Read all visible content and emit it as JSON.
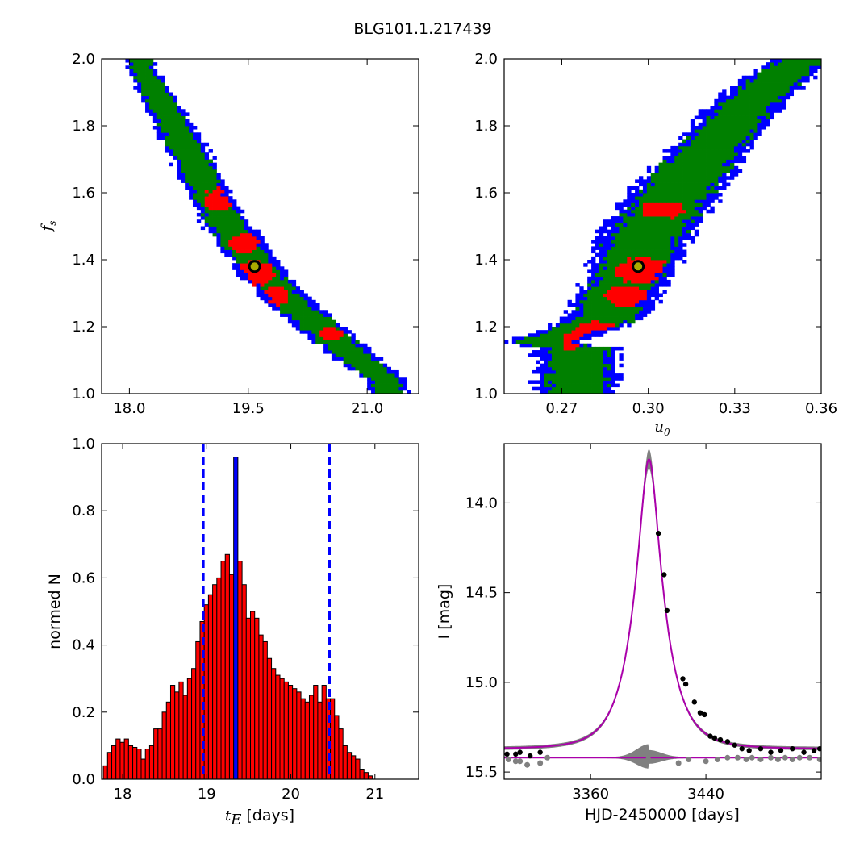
{
  "figure": {
    "title": "BLG101.1.217439"
  },
  "colors": {
    "sigma1": "#ff0000",
    "sigma2": "#008000",
    "sigma3": "#0000ff",
    "best_marker_face": "#aaaa00",
    "hist_bar": "#ff0000",
    "hist_peak": "#0000ff",
    "dashed": "#0000ff",
    "model_line": "#aa00aa",
    "band": "#808080",
    "data_point": "#000000",
    "residual_point": "#808080"
  },
  "chart_data": [
    {
      "id": "te_fs",
      "type": "heatmap",
      "title": "",
      "xlabel": "",
      "ylabel": "f_s",
      "ylabel_main": "f",
      "ylabel_sub": "s",
      "xlim": [
        17.65,
        21.65
      ],
      "ylim": [
        1.0,
        2.0
      ],
      "xticks": [
        18.0,
        19.5,
        21.0
      ],
      "xtick_labels": [
        "18.0",
        "19.5",
        "21.0"
      ],
      "yticks": [
        1.0,
        1.2,
        1.4,
        1.6,
        1.8,
        2.0
      ],
      "ytick_labels": [
        "1.0",
        "1.2",
        "1.4",
        "1.6",
        "1.8",
        "2.0"
      ],
      "regions": [
        "1-sigma (red)",
        "2-sigma (green)",
        "3-sigma (blue)"
      ],
      "ridge": [
        {
          "x": 18.15,
          "y": 1.97,
          "w": 0.18
        },
        {
          "x": 18.45,
          "y": 1.85,
          "w": 0.22
        },
        {
          "x": 18.75,
          "y": 1.72,
          "w": 0.26
        },
        {
          "x": 19.0,
          "y": 1.6,
          "w": 0.28
        },
        {
          "x": 19.25,
          "y": 1.5,
          "w": 0.3
        },
        {
          "x": 19.5,
          "y": 1.42,
          "w": 0.3
        },
        {
          "x": 19.75,
          "y": 1.34,
          "w": 0.3
        },
        {
          "x": 20.0,
          "y": 1.28,
          "w": 0.3
        },
        {
          "x": 20.3,
          "y": 1.22,
          "w": 0.3
        },
        {
          "x": 20.6,
          "y": 1.16,
          "w": 0.3
        },
        {
          "x": 20.9,
          "y": 1.1,
          "w": 0.28
        },
        {
          "x": 21.25,
          "y": 1.04,
          "w": 0.24
        }
      ],
      "red_blobs": [
        {
          "x": 19.15,
          "y": 1.58,
          "rx": 0.2,
          "ry": 0.035
        },
        {
          "x": 19.45,
          "y": 1.45,
          "rx": 0.18,
          "ry": 0.03
        },
        {
          "x": 19.6,
          "y": 1.36,
          "rx": 0.22,
          "ry": 0.04
        },
        {
          "x": 19.85,
          "y": 1.29,
          "rx": 0.18,
          "ry": 0.03
        },
        {
          "x": 20.55,
          "y": 1.18,
          "rx": 0.15,
          "ry": 0.02
        }
      ],
      "best_fit": {
        "x": 19.58,
        "y": 1.38
      }
    },
    {
      "id": "u0_fs",
      "type": "heatmap",
      "title": "",
      "xlabel": "u_0",
      "xlabel_main": "u",
      "xlabel_sub": "0",
      "ylabel": "",
      "xlim": [
        0.25,
        0.36
      ],
      "ylim": [
        1.0,
        2.0
      ],
      "xticks": [
        0.27,
        0.3,
        0.33,
        0.36
      ],
      "xtick_labels": [
        "0.27",
        "0.30",
        "0.33",
        "0.36"
      ],
      "yticks": [
        1.0,
        1.2,
        1.4,
        1.6,
        1.8,
        2.0
      ],
      "ytick_labels": [
        "1.0",
        "1.2",
        "1.4",
        "1.6",
        "1.8",
        "2.0"
      ],
      "regions": [
        "1-sigma (red)",
        "2-sigma (green)",
        "3-sigma (blue)"
      ],
      "ridge": [
        {
          "x": 0.262,
          "y": 1.15,
          "w": 0.012
        },
        {
          "x": 0.275,
          "y": 1.14,
          "w": 0.014
        },
        {
          "x": 0.285,
          "y": 1.22,
          "w": 0.014
        },
        {
          "x": 0.292,
          "y": 1.33,
          "w": 0.014
        },
        {
          "x": 0.298,
          "y": 1.45,
          "w": 0.016
        },
        {
          "x": 0.305,
          "y": 1.55,
          "w": 0.016
        },
        {
          "x": 0.313,
          "y": 1.64,
          "w": 0.016
        },
        {
          "x": 0.322,
          "y": 1.74,
          "w": 0.014
        },
        {
          "x": 0.332,
          "y": 1.84,
          "w": 0.013
        },
        {
          "x": 0.343,
          "y": 1.93,
          "w": 0.012
        },
        {
          "x": 0.352,
          "y": 1.99,
          "w": 0.01
        }
      ],
      "red_blobs": [
        {
          "x": 0.305,
          "y": 1.55,
          "rx": 0.008,
          "ry": 0.025
        },
        {
          "x": 0.298,
          "y": 1.37,
          "rx": 0.009,
          "ry": 0.04
        },
        {
          "x": 0.293,
          "y": 1.29,
          "rx": 0.008,
          "ry": 0.03
        },
        {
          "x": 0.282,
          "y": 1.19,
          "rx": 0.007,
          "ry": 0.025
        },
        {
          "x": 0.274,
          "y": 1.16,
          "rx": 0.004,
          "ry": 0.03
        }
      ],
      "best_fit": {
        "x": 0.2965,
        "y": 1.38
      }
    },
    {
      "id": "te_hist",
      "type": "bar",
      "title": "",
      "xlabel": "t_E [days]",
      "xlabel_main": "t",
      "xlabel_sub": "E",
      "xlabel_unit": "[days]",
      "ylabel": "normed N",
      "xlim": [
        17.75,
        21.52
      ],
      "ylim": [
        0.0,
        1.0
      ],
      "xticks": [
        18,
        19,
        20,
        21
      ],
      "xtick_labels": [
        "18",
        "19",
        "20",
        "21"
      ],
      "yticks": [
        0.0,
        0.2,
        0.4,
        0.6,
        0.8,
        1.0
      ],
      "ytick_labels": [
        "0.0",
        "0.2",
        "0.4",
        "0.6",
        "0.8",
        "1.0"
      ],
      "bin_start": 17.77,
      "bin_width": 0.05,
      "values": [
        0.04,
        0.08,
        0.1,
        0.12,
        0.11,
        0.12,
        0.1,
        0.095,
        0.09,
        0.06,
        0.09,
        0.1,
        0.15,
        0.15,
        0.2,
        0.23,
        0.28,
        0.26,
        0.29,
        0.25,
        0.3,
        0.33,
        0.41,
        0.47,
        0.52,
        0.55,
        0.58,
        0.6,
        0.65,
        0.67,
        0.61,
        0.96,
        0.65,
        0.58,
        0.48,
        0.5,
        0.48,
        0.43,
        0.41,
        0.36,
        0.33,
        0.31,
        0.3,
        0.29,
        0.28,
        0.27,
        0.26,
        0.24,
        0.23,
        0.25,
        0.28,
        0.23,
        0.28,
        0.24,
        0.24,
        0.19,
        0.15,
        0.1,
        0.08,
        0.07,
        0.06,
        0.03,
        0.02,
        0.01
      ],
      "peak_index": 31,
      "vlines": [
        18.96,
        20.46
      ]
    },
    {
      "id": "lightcurve",
      "type": "line",
      "title": "",
      "xlabel": "HJD-2450000 [days]",
      "ylabel": "I [mag]",
      "xlim": [
        3300,
        3520
      ],
      "ylim": [
        15.54,
        13.67
      ],
      "y_inverted": true,
      "xticks": [
        3360,
        3440
      ],
      "xtick_labels": [
        "3360",
        "3440"
      ],
      "yticks": [
        14.0,
        14.5,
        15.0,
        15.5
      ],
      "ytick_labels": [
        "14.0",
        "14.5",
        "15.0",
        "15.5"
      ],
      "model": {
        "t0": 3400.5,
        "u0": 0.297,
        "tE": 19.6,
        "fs": 1.38,
        "baseline": 15.37
      },
      "baseline_level": 15.42,
      "data_points": [
        [
          3302,
          15.4
        ],
        [
          3308,
          15.4
        ],
        [
          3311,
          15.39
        ],
        [
          3318,
          15.41
        ],
        [
          3325,
          15.39
        ],
        [
          3407,
          14.17
        ],
        [
          3411,
          14.4
        ],
        [
          3413,
          14.6
        ],
        [
          3424,
          14.98
        ],
        [
          3426,
          15.01
        ],
        [
          3432,
          15.11
        ],
        [
          3436,
          15.17
        ],
        [
          3439,
          15.18
        ],
        [
          3443,
          15.3
        ],
        [
          3446,
          15.31
        ],
        [
          3450,
          15.32
        ],
        [
          3455,
          15.33
        ],
        [
          3460,
          15.35
        ],
        [
          3465,
          15.37
        ],
        [
          3470,
          15.38
        ],
        [
          3478,
          15.37
        ],
        [
          3485,
          15.39
        ],
        [
          3492,
          15.38
        ],
        [
          3500,
          15.37
        ],
        [
          3508,
          15.39
        ],
        [
          3515,
          15.38
        ],
        [
          3519,
          15.37
        ]
      ],
      "residual_points": [
        [
          3303,
          15.43
        ],
        [
          3308,
          15.44
        ],
        [
          3311,
          15.44
        ],
        [
          3316,
          15.46
        ],
        [
          3325,
          15.45
        ],
        [
          3330,
          15.42
        ],
        [
          3400,
          15.43
        ],
        [
          3421,
          15.45
        ],
        [
          3428,
          15.43
        ],
        [
          3440,
          15.44
        ],
        [
          3448,
          15.43
        ],
        [
          3455,
          15.42
        ],
        [
          3462,
          15.42
        ],
        [
          3468,
          15.43
        ],
        [
          3472,
          15.42
        ],
        [
          3478,
          15.43
        ],
        [
          3485,
          15.42
        ],
        [
          3490,
          15.43
        ],
        [
          3495,
          15.42
        ],
        [
          3500,
          15.43
        ],
        [
          3505,
          15.42
        ],
        [
          3512,
          15.42
        ],
        [
          3519,
          15.43
        ]
      ]
    }
  ]
}
